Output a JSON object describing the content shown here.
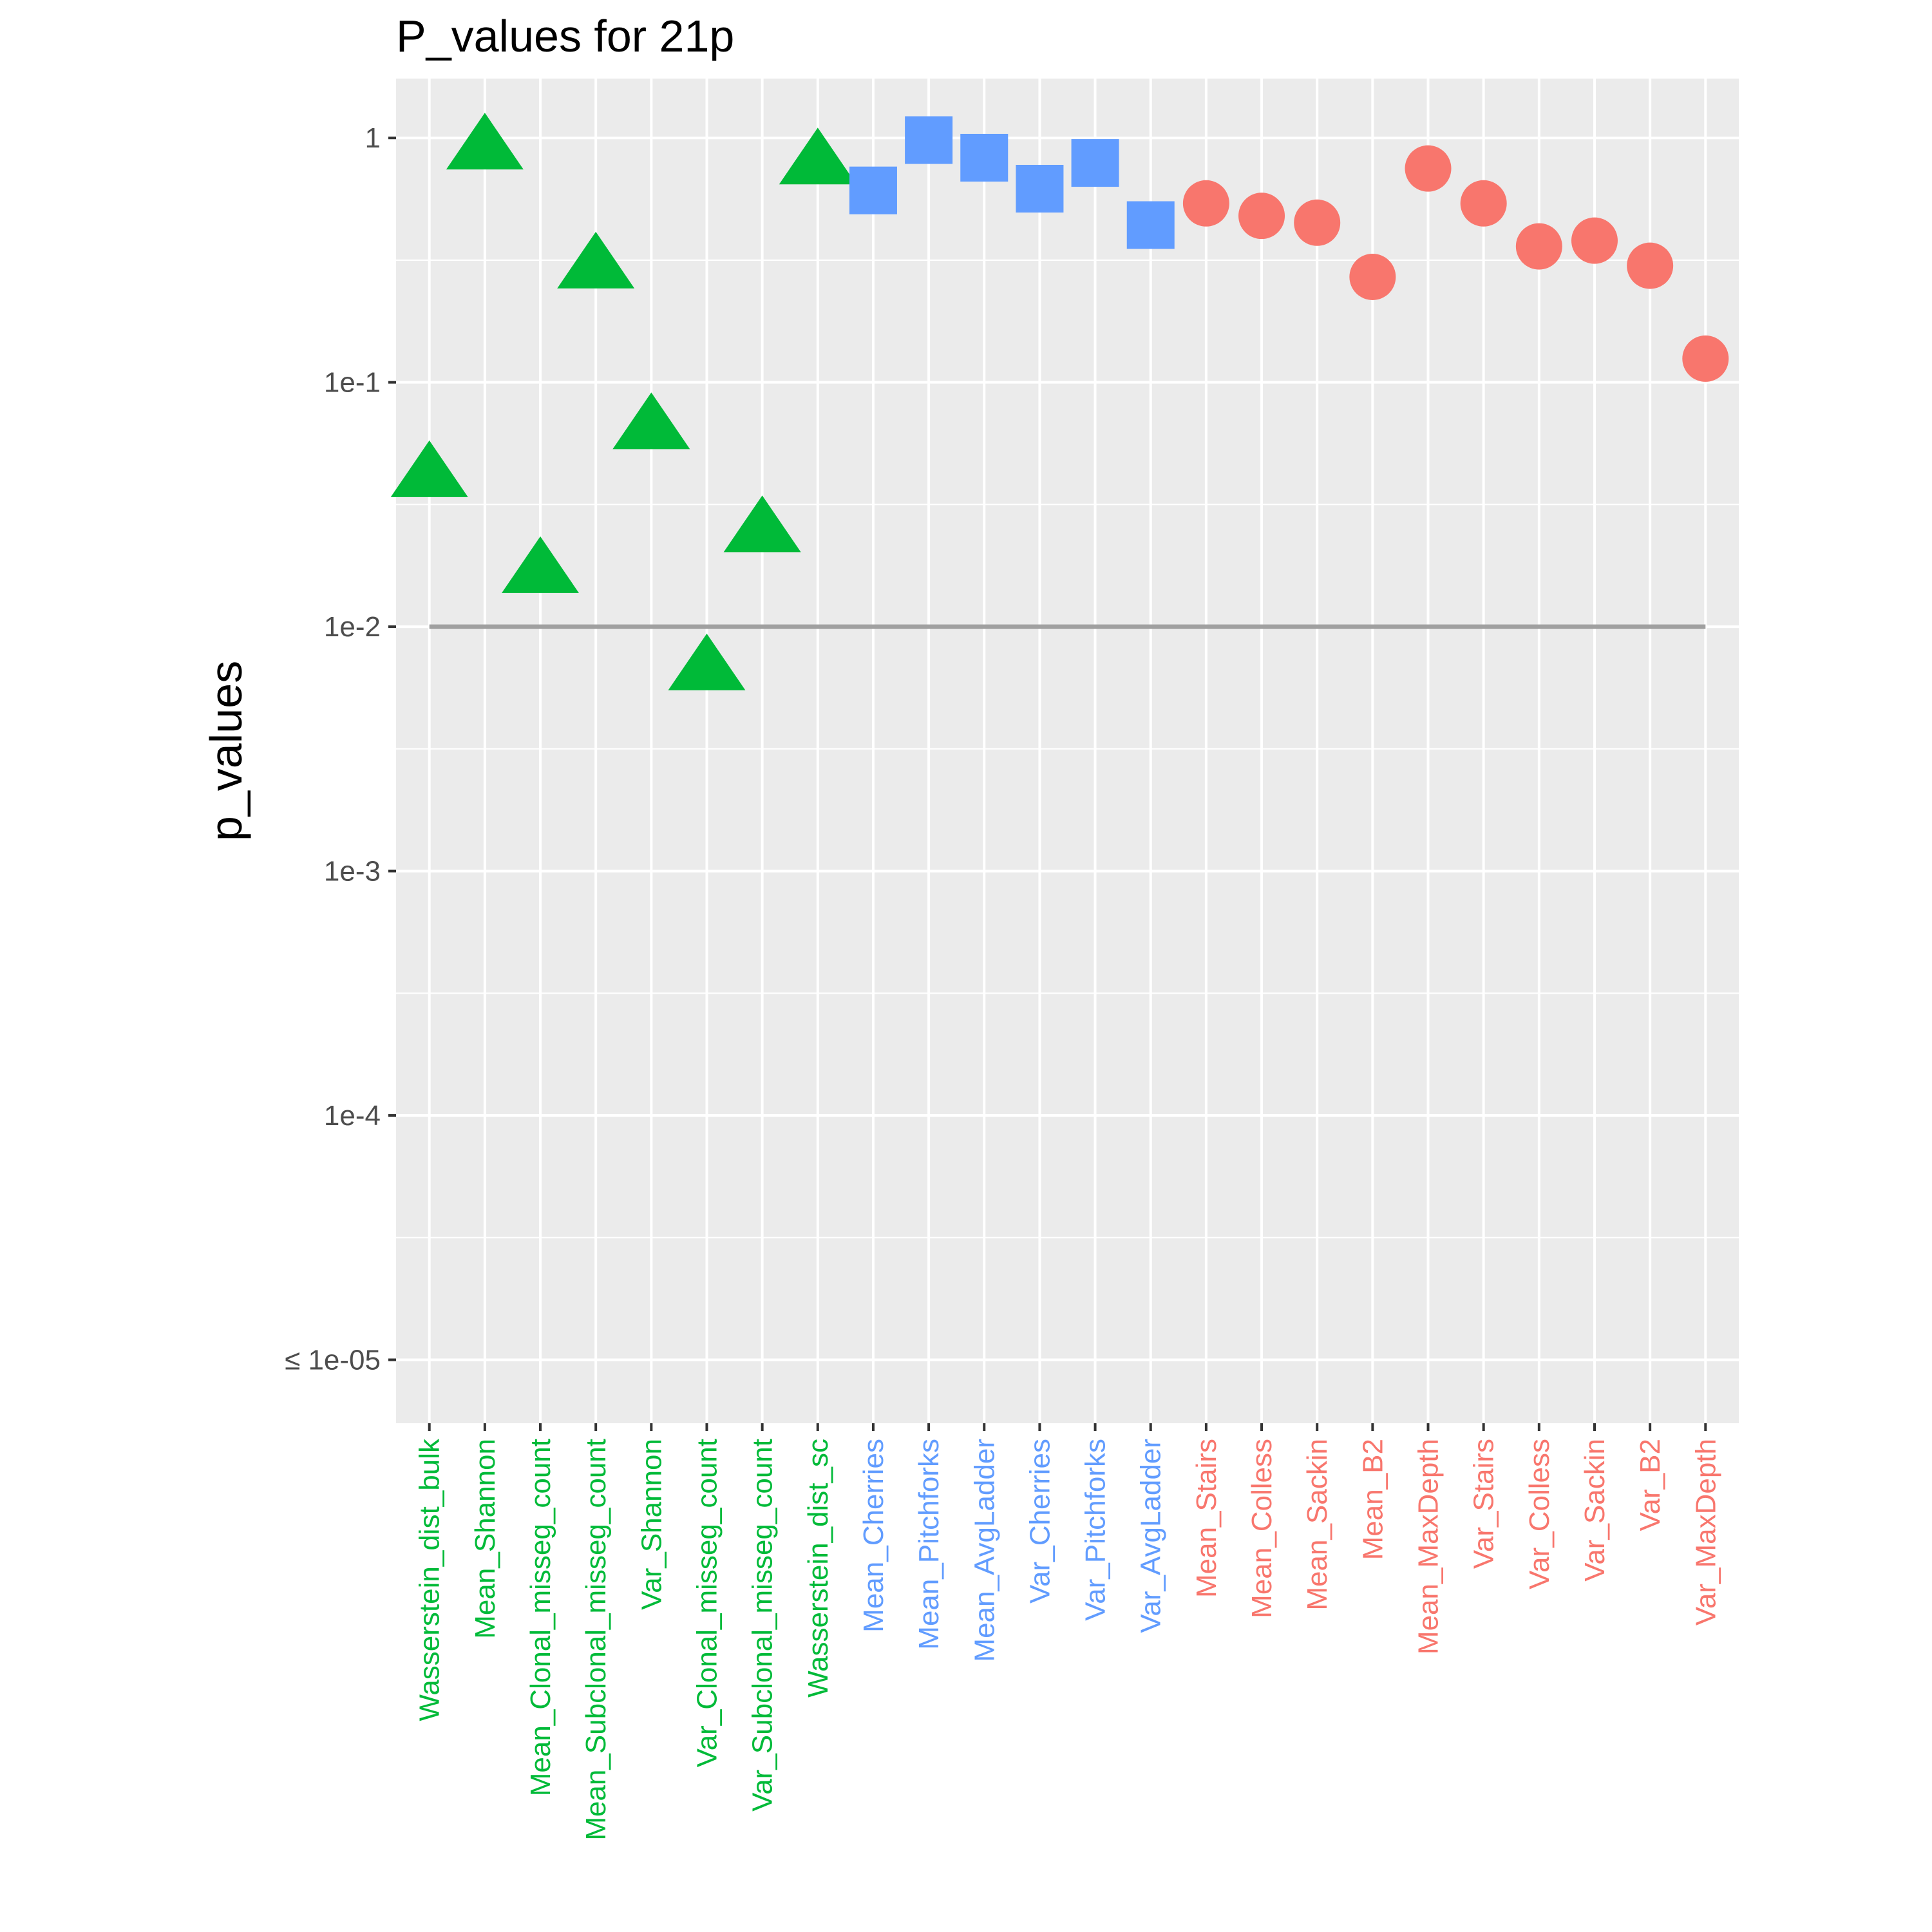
{
  "chart_data": {
    "type": "scatter",
    "title": "P_values for 21p",
    "xlabel": "",
    "ylabel": "p_values",
    "y_scale": "log10",
    "ylim": [
      5.5e-06,
      1.75
    ],
    "y_ticks": [
      {
        "value": 1,
        "label": "1"
      },
      {
        "value": 0.1,
        "label": "1e-1"
      },
      {
        "value": 0.01,
        "label": "1e-2"
      },
      {
        "value": 0.001,
        "label": "1e-3"
      },
      {
        "value": 0.0001,
        "label": "1e-4"
      },
      {
        "value": 1e-05,
        "label": "≤ 1e-05"
      }
    ],
    "threshold": 0.01,
    "grid": true,
    "legend": "none",
    "colors": {
      "green": "#00ba38",
      "blue": "#619cff",
      "red": "#f8766d",
      "panel": "#ebebeb",
      "grid": "#ffffff",
      "threshold": "#a0a0a0"
    },
    "points": [
      {
        "category": "Wasserstein_dist_bulk",
        "value": 0.042,
        "group": "green",
        "shape": "triangle"
      },
      {
        "category": "Mean_Shannon",
        "value": 0.92,
        "group": "green",
        "shape": "triangle"
      },
      {
        "category": "Mean_Clonal_misseg_count",
        "value": 0.017,
        "group": "green",
        "shape": "triangle"
      },
      {
        "category": "Mean_Subclonal_misseg_count",
        "value": 0.3,
        "group": "green",
        "shape": "triangle"
      },
      {
        "category": "Var_Shannon",
        "value": 0.066,
        "group": "green",
        "shape": "triangle"
      },
      {
        "category": "Var_Clonal_misseg_count",
        "value": 0.0068,
        "group": "green",
        "shape": "triangle"
      },
      {
        "category": "Var_Subclonal_misseg_count",
        "value": 0.025,
        "group": "green",
        "shape": "triangle"
      },
      {
        "category": "Wasserstein_dist_sc",
        "value": 0.8,
        "group": "green",
        "shape": "triangle"
      },
      {
        "category": "Mean_Cherries",
        "value": 0.61,
        "group": "blue",
        "shape": "square"
      },
      {
        "category": "Mean_Pitchforks",
        "value": 0.98,
        "group": "blue",
        "shape": "square"
      },
      {
        "category": "Mean_AvgLadder",
        "value": 0.83,
        "group": "blue",
        "shape": "square"
      },
      {
        "category": "Var_Cherries",
        "value": 0.62,
        "group": "blue",
        "shape": "square"
      },
      {
        "category": "Var_Pitchforks",
        "value": 0.79,
        "group": "blue",
        "shape": "square"
      },
      {
        "category": "Var_AvgLadder",
        "value": 0.44,
        "group": "blue",
        "shape": "square"
      },
      {
        "category": "Mean_Stairs",
        "value": 0.54,
        "group": "red",
        "shape": "circle"
      },
      {
        "category": "Mean_Colless",
        "value": 0.48,
        "group": "red",
        "shape": "circle"
      },
      {
        "category": "Mean_Sackin",
        "value": 0.45,
        "group": "red",
        "shape": "circle"
      },
      {
        "category": "Mean_B2",
        "value": 0.27,
        "group": "red",
        "shape": "circle"
      },
      {
        "category": "Mean_MaxDepth",
        "value": 0.75,
        "group": "red",
        "shape": "circle"
      },
      {
        "category": "Var_Stairs",
        "value": 0.54,
        "group": "red",
        "shape": "circle"
      },
      {
        "category": "Var_Colless",
        "value": 0.36,
        "group": "red",
        "shape": "circle"
      },
      {
        "category": "Var_Sackin",
        "value": 0.38,
        "group": "red",
        "shape": "circle"
      },
      {
        "category": "Var_B2",
        "value": 0.3,
        "group": "red",
        "shape": "circle"
      },
      {
        "category": "Var_MaxDepth",
        "value": 0.125,
        "group": "red",
        "shape": "circle"
      }
    ]
  }
}
